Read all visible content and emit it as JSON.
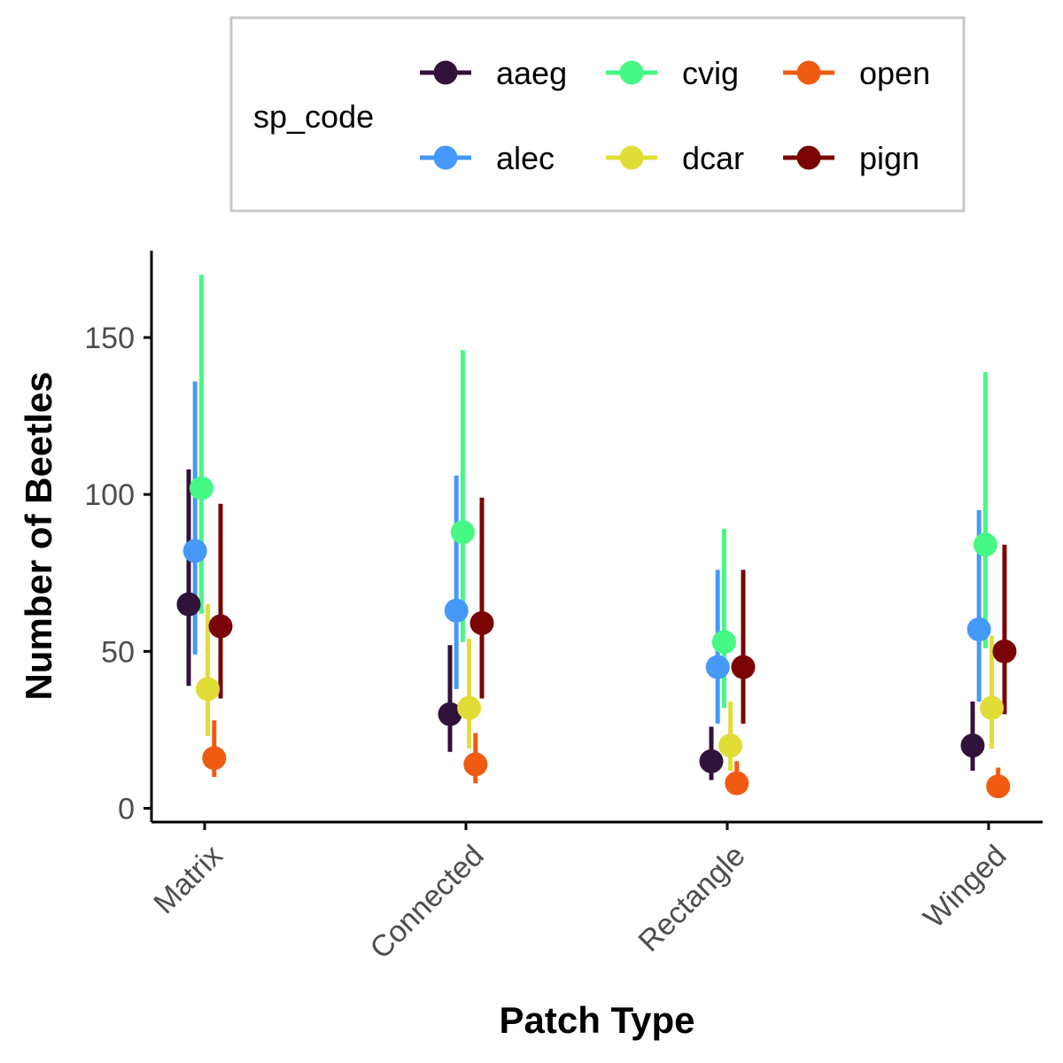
{
  "chart_data": {
    "type": "scatter",
    "xlabel": "Patch Type",
    "ylabel": "Number of Beetles",
    "ylim": [
      -4,
      178
    ],
    "yticks": [
      0,
      50,
      100,
      150
    ],
    "categories": [
      "Matrix",
      "Connected",
      "Rectangle",
      "Winged"
    ],
    "legend": {
      "title": "sp_code",
      "placement": "top"
    },
    "series": [
      {
        "name": "aaeg",
        "color": "#30123b",
        "values": [
          65,
          30,
          15,
          20
        ],
        "lower": [
          39,
          18,
          9,
          12
        ],
        "upper": [
          108,
          52,
          26,
          34
        ]
      },
      {
        "name": "alec",
        "color": "#4499f9",
        "values": [
          82,
          63,
          45,
          57
        ],
        "lower": [
          49,
          38,
          27,
          34
        ],
        "upper": [
          136,
          106,
          76,
          95
        ]
      },
      {
        "name": "cvig",
        "color": "#46f884",
        "values": [
          102,
          88,
          53,
          84
        ],
        "lower": [
          62,
          53,
          32,
          51
        ],
        "upper": [
          170,
          146,
          89,
          139
        ]
      },
      {
        "name": "dcar",
        "color": "#e1dd37",
        "values": [
          38,
          32,
          20,
          32
        ],
        "lower": [
          23,
          19,
          12,
          19
        ],
        "upper": [
          65,
          54,
          34,
          55
        ]
      },
      {
        "name": "open",
        "color": "#f05b12",
        "values": [
          16,
          14,
          8,
          7
        ],
        "lower": [
          10,
          8,
          5,
          4
        ],
        "upper": [
          28,
          24,
          15,
          13
        ]
      },
      {
        "name": "pign",
        "color": "#7a0403",
        "values": [
          58,
          59,
          45,
          50
        ],
        "lower": [
          35,
          35,
          27,
          30
        ],
        "upper": [
          97,
          99,
          76,
          84
        ]
      }
    ]
  }
}
